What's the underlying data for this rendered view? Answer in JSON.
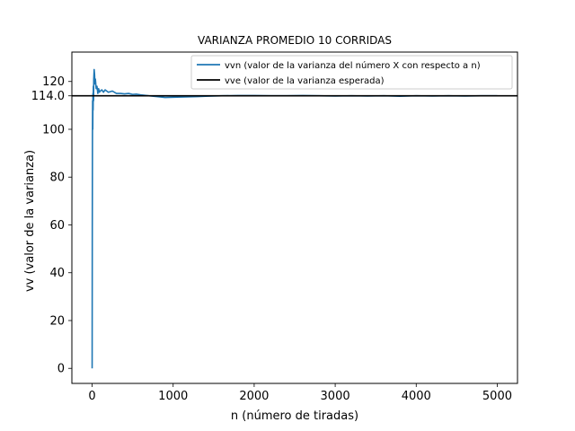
{
  "chart_data": {
    "type": "line",
    "title": "VARIANZA PROMEDIO 10 CORRIDAS",
    "xlabel": "n (número de tiradas)",
    "ylabel": "vv (valor de la varianza)",
    "xlim": [
      -250,
      5250
    ],
    "ylim": [
      -6.3,
      132.3
    ],
    "xticks": [
      0,
      1000,
      2000,
      3000,
      4000,
      5000
    ],
    "xtick_labels": [
      "0",
      "1000",
      "2000",
      "3000",
      "4000",
      "5000"
    ],
    "yticks": [
      0,
      20,
      40,
      60,
      80,
      100,
      120
    ],
    "ytick_labels": [
      "0",
      "20",
      "40",
      "60",
      "80",
      "100",
      "120"
    ],
    "extra_ytick": {
      "value": 114.0,
      "label": "114.0"
    },
    "grid": false,
    "legend_position": "top-right",
    "series": [
      {
        "name": "vvn (valor de la varianza del número X con respecto a n)",
        "color": "#1f77b4",
        "x": [
          0,
          2,
          4,
          6,
          8,
          10,
          12,
          15,
          18,
          20,
          25,
          30,
          35,
          40,
          50,
          60,
          70,
          80,
          90,
          100,
          120,
          140,
          160,
          180,
          200,
          250,
          300,
          350,
          400,
          450,
          500,
          550,
          600,
          650,
          700,
          800,
          900,
          1000,
          1100,
          1200,
          1300,
          1400,
          1500,
          1600,
          1800,
          2000,
          2200,
          2400,
          2600,
          2800,
          3000,
          3200,
          3400,
          3600,
          3800,
          4000,
          4200,
          4400,
          4600,
          4800,
          5000
        ],
        "y": [
          0,
          60,
          97,
          112,
          100,
          115,
          108,
          118,
          112,
          121,
          125,
          123,
          119,
          121,
          117,
          118,
          115,
          117,
          115.5,
          116,
          116.5,
          115.5,
          116.5,
          116,
          115.5,
          116,
          115,
          115,
          114.8,
          115,
          114.6,
          114.7,
          114.4,
          114.2,
          114,
          113.7,
          113.3,
          113.4,
          113.5,
          113.6,
          113.7,
          113.8,
          113.9,
          114,
          114.1,
          114.1,
          114,
          114,
          114.1,
          114,
          113.9,
          114,
          113.9,
          114,
          113.8,
          114,
          113.9,
          114,
          113.9,
          114,
          114
        ]
      },
      {
        "name": "vve (valor de la varianza esperada)",
        "color": "#000000",
        "type": "hline",
        "y": 114.0
      }
    ]
  }
}
